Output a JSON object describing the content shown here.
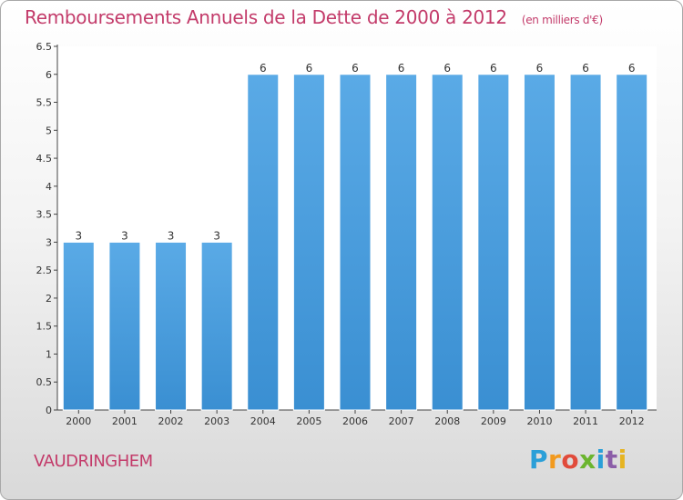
{
  "header": {
    "title": "Remboursements Annuels de la Dette de 2000 à 2012",
    "unit": "(en milliers d'€)"
  },
  "footer": {
    "commune": "VAUDRINGHEM",
    "logo_letters": [
      "P",
      "r",
      "o",
      "x",
      "i",
      "t",
      "i"
    ],
    "logo_colors": [
      "#2a9fd8",
      "#f29a1e",
      "#e14b3b",
      "#6bb52e",
      "#2a9fd8",
      "#8b5ea8",
      "#e6b422"
    ]
  },
  "chart_data": {
    "type": "bar",
    "categories": [
      "2000",
      "2001",
      "2002",
      "2003",
      "2004",
      "2005",
      "2006",
      "2007",
      "2008",
      "2009",
      "2010",
      "2011",
      "2012"
    ],
    "values": [
      3,
      3,
      3,
      3,
      6,
      6,
      6,
      6,
      6,
      6,
      6,
      6,
      6
    ],
    "data_labels": [
      "3",
      "3",
      "3",
      "3",
      "6",
      "6",
      "6",
      "6",
      "6",
      "6",
      "6",
      "6",
      "6"
    ],
    "title": "Remboursements Annuels de la Dette de 2000 à 2012",
    "xlabel": "",
    "ylabel": "",
    "ylim": [
      0,
      6.5
    ],
    "yticks": [
      "0",
      "0.5",
      "1",
      "1.5",
      "2",
      "2.5",
      "3",
      "3.5",
      "4",
      "4.5",
      "5",
      "5.5",
      "6",
      "6.5"
    ],
    "ytick_values": [
      0,
      0.5,
      1,
      1.5,
      2,
      2.5,
      3,
      3.5,
      4,
      4.5,
      5,
      5.5,
      6,
      6.5
    ],
    "bar_color": "#3a8fd2",
    "bar_color_light": "#5aaae6",
    "plot_background": "#ffffff",
    "grid": false
  }
}
